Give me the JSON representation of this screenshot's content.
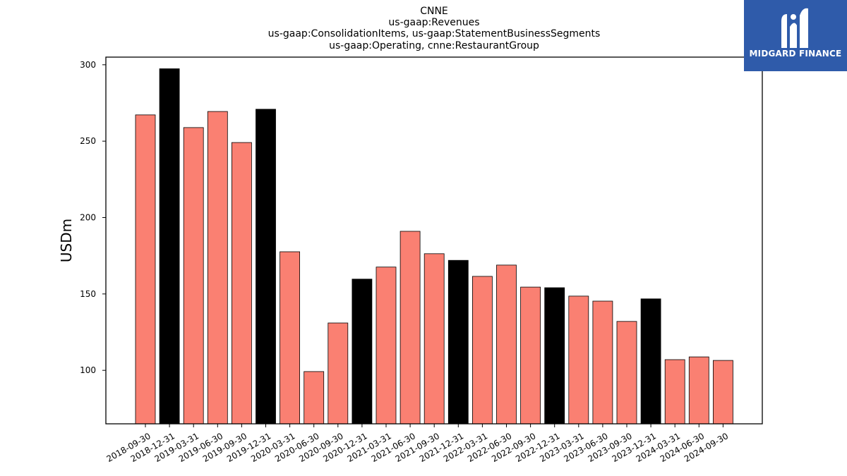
{
  "chart_data": {
    "type": "bar",
    "title_lines": [
      "CNNE",
      "us-gaap:Revenues",
      "us-gaap:ConsolidationItems, us-gaap:StatementBusinessSegments",
      "us-gaap:Operating, cnne:RestaurantGroup"
    ],
    "ylabel": "USDm",
    "xlabel": "",
    "ylim": [
      65,
      305
    ],
    "yticks": [
      100,
      150,
      200,
      250,
      300
    ],
    "categories": [
      "2018-09-30",
      "2018-12-31",
      "2019-03-31",
      "2019-06-30",
      "2019-09-30",
      "2019-12-31",
      "2020-03-31",
      "2020-06-30",
      "2020-09-30",
      "2020-12-31",
      "2021-03-31",
      "2021-06-30",
      "2021-09-30",
      "2021-12-31",
      "2022-03-31",
      "2022-06-30",
      "2022-09-30",
      "2022-12-31",
      "2023-03-31",
      "2023-06-30",
      "2023-09-30",
      "2023-12-31",
      "2024-03-31",
      "2024-06-30",
      "2024-09-30"
    ],
    "values": [
      267.2,
      297.4,
      258.9,
      269.4,
      249.1,
      270.9,
      177.6,
      99.2,
      131.0,
      159.7,
      167.6,
      191.0,
      176.3,
      172.0,
      161.5,
      168.9,
      154.5,
      154.1,
      148.6,
      145.3,
      132.0,
      146.8,
      107.0,
      108.8,
      106.5
    ],
    "highlight": [
      false,
      true,
      false,
      false,
      false,
      true,
      false,
      false,
      false,
      true,
      false,
      false,
      false,
      true,
      false,
      false,
      false,
      true,
      false,
      false,
      false,
      true,
      false,
      false,
      false
    ],
    "colors": {
      "normal": "#fa8072",
      "highlight": "#000000",
      "edge": "#000000"
    }
  },
  "logo": {
    "text": "MIDGARD FINANCE",
    "background": "#2f5baa"
  }
}
